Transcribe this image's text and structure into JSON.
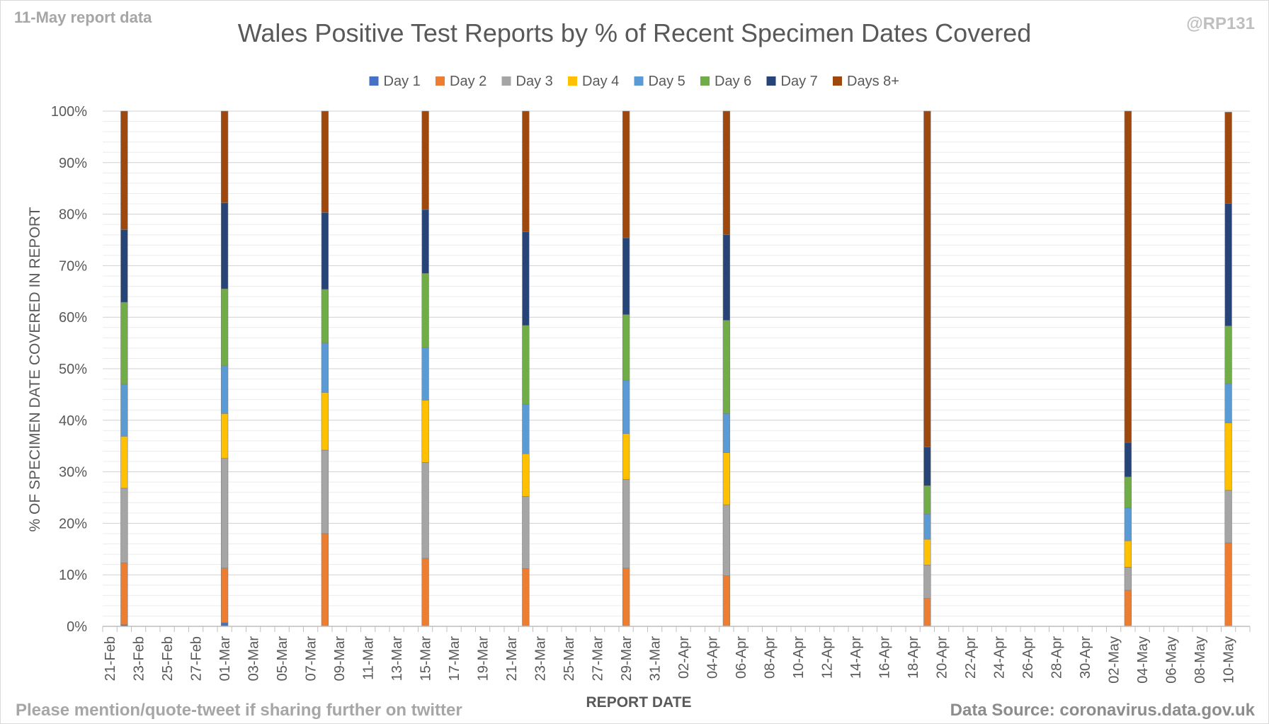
{
  "header": {
    "report_label": "11-May report data",
    "handle": "@RP131"
  },
  "footer": {
    "left": "Please mention/quote-tweet if sharing further on twitter",
    "right": "Data Source: coronavirus.data.gov.uk"
  },
  "colors": {
    "Day 1": "#4472c4",
    "Day 2": "#ed7d31",
    "Day 3": "#a5a5a5",
    "Day 4": "#ffc000",
    "Day 5": "#5b9bd5",
    "Day 6": "#70ad47",
    "Day 7": "#264478",
    "Days 8+": "#9e480e"
  },
  "chart_data": {
    "type": "bar",
    "stacked": true,
    "title": "Wales Positive Test Reports by % of Recent Specimen Dates Covered",
    "xlabel": "REPORT DATE",
    "ylabel": "% OF SPECIMEN DATE COVERED IN REPORT",
    "ylim": [
      0,
      100
    ],
    "y_ticks": [
      "0%",
      "10%",
      "20%",
      "30%",
      "40%",
      "50%",
      "60%",
      "70%",
      "80%",
      "90%",
      "100%"
    ],
    "x_tick_labels": [
      "21-Feb",
      "23-Feb",
      "25-Feb",
      "27-Feb",
      "01-Mar",
      "03-Mar",
      "05-Mar",
      "07-Mar",
      "09-Mar",
      "11-Mar",
      "13-Mar",
      "15-Mar",
      "17-Mar",
      "19-Mar",
      "21-Mar",
      "23-Mar",
      "25-Mar",
      "27-Mar",
      "29-Mar",
      "31-Mar",
      "02-Apr",
      "04-Apr",
      "06-Apr",
      "08-Apr",
      "10-Apr",
      "12-Apr",
      "14-Apr",
      "16-Apr",
      "18-Apr",
      "20-Apr",
      "22-Apr",
      "24-Apr",
      "26-Apr",
      "28-Apr",
      "30-Apr",
      "02-May",
      "04-May",
      "06-May",
      "08-May",
      "10-May"
    ],
    "categories": [
      "22-Feb",
      "01-Mar",
      "08-Mar",
      "15-Mar",
      "22-Mar",
      "29-Mar",
      "05-Apr",
      "19-Apr",
      "03-May",
      "10-May"
    ],
    "legend_position": "top",
    "grid": true,
    "series": [
      {
        "name": "Day 1",
        "values": [
          0.3,
          0.7,
          0,
          0,
          0,
          0,
          0,
          0,
          0,
          0
        ]
      },
      {
        "name": "Day 2",
        "values": [
          12,
          10.6,
          18,
          13.2,
          11.2,
          11.3,
          9.8,
          5.4,
          7,
          16.2
        ]
      },
      {
        "name": "Day 3",
        "values": [
          14.5,
          21.3,
          16.2,
          18.6,
          14,
          17.2,
          13.8,
          6.5,
          4.5,
          10.2
        ]
      },
      {
        "name": "Day 4",
        "values": [
          10.1,
          8.7,
          11.2,
          12.1,
          8.3,
          8.9,
          10.1,
          5,
          5.1,
          13.1
        ]
      },
      {
        "name": "Day 5",
        "values": [
          10.1,
          9.3,
          9.6,
          10.2,
          9.6,
          10.3,
          7.6,
          4.9,
          6.4,
          7.6
        ]
      },
      {
        "name": "Day 6",
        "values": [
          15.9,
          14.9,
          10.4,
          14.4,
          15.3,
          12.8,
          18.1,
          5.5,
          6,
          11.2
        ]
      },
      {
        "name": "Day 7",
        "values": [
          14.1,
          16.7,
          14.9,
          12.4,
          18.2,
          14.9,
          16.6,
          7.5,
          6.7,
          23.8
        ]
      },
      {
        "name": "Days 8+",
        "values": [
          23,
          17.8,
          19.7,
          19.1,
          23.4,
          24.6,
          24,
          65.2,
          64.3,
          17.7
        ]
      }
    ]
  }
}
